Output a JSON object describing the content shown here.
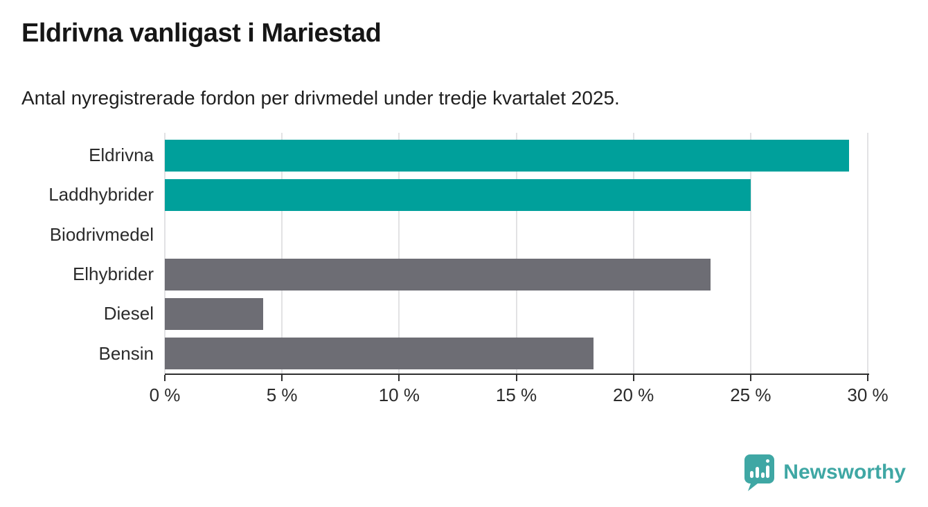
{
  "header": {
    "title": "Eldrivna vanligast i Mariestad",
    "subtitle": "Antal nyregistrerade fordon per drivmedel under tredje kvartalet 2025."
  },
  "chart_data": {
    "type": "bar",
    "orientation": "horizontal",
    "title": "Eldrivna vanligast i Mariestad",
    "subtitle": "Antal nyregistrerade fordon per drivmedel under tredje kvartalet 2025.",
    "categories": [
      "Eldrivna",
      "Laddhybrider",
      "Biodrivmedel",
      "Elhybrider",
      "Diesel",
      "Bensin"
    ],
    "values": [
      29.2,
      25.0,
      0,
      23.3,
      4.2,
      18.3
    ],
    "unit": "%",
    "xlabel": "",
    "ylabel": "",
    "xlim": [
      0,
      30
    ],
    "x_ticks": [
      0,
      5,
      10,
      15,
      20,
      25,
      30
    ],
    "x_tick_labels": [
      "0 %",
      "5 %",
      "10 %",
      "15 %",
      "20 %",
      "25 %",
      "30 %"
    ],
    "grid": true,
    "legend_position": "none",
    "colors": {
      "highlight": "#00A09B",
      "default": "#6D6D74",
      "gridline": "#E2E2E4",
      "axis": "#2e2e2e"
    },
    "bar_color_keys": [
      "highlight",
      "highlight",
      "default",
      "default",
      "default",
      "default"
    ]
  },
  "footer": {
    "brand": "Newsworthy",
    "brand_color": "#3FA7A4"
  }
}
